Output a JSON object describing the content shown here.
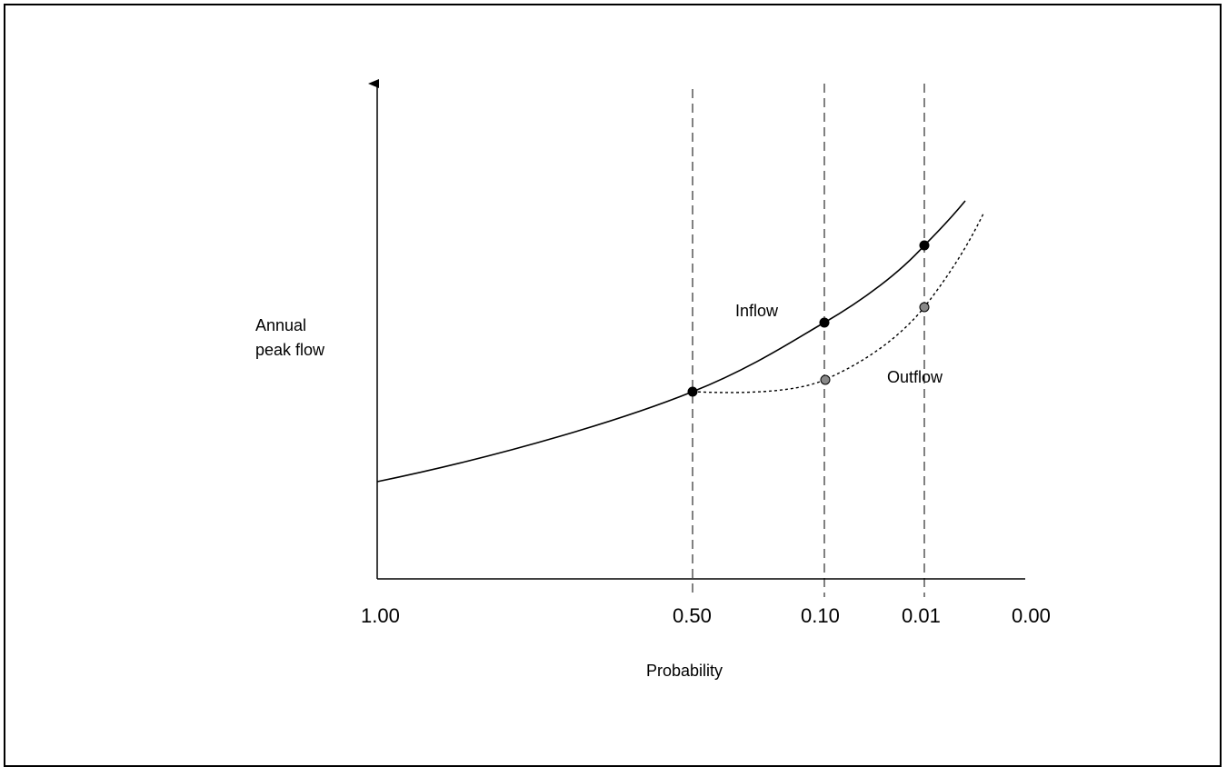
{
  "chart_data": {
    "type": "line",
    "xlabel": "Probability",
    "ylabel": [
      "Annual",
      "peak flow"
    ],
    "x_axis": {
      "reversed": true,
      "tick_labels": [
        "1.00",
        "0.50",
        "0.10",
        "0.01",
        "0.00"
      ]
    },
    "reference_lines": {
      "style": "dashed",
      "at": [
        "0.50",
        "0.10",
        "0.01"
      ]
    },
    "grid": false,
    "colors": {
      "inflow": "#000000",
      "outflow": "#000000",
      "outflow_marker": "#888888"
    },
    "series": [
      {
        "name": "Inflow",
        "style": "solid",
        "points": [
          {
            "x": "1.00",
            "y": 1.0
          },
          {
            "x": "0.50",
            "y": 2.0,
            "marker": true
          },
          {
            "x": "0.10",
            "y": 2.7,
            "marker": true
          },
          {
            "x": "0.01",
            "y": 3.5,
            "marker": true
          }
        ]
      },
      {
        "name": "Outflow",
        "style": "dotted",
        "points": [
          {
            "x": "0.50",
            "y": 2.0
          },
          {
            "x": "0.10",
            "y": 2.1,
            "marker": true
          },
          {
            "x": "0.01",
            "y": 2.9,
            "marker": true
          }
        ]
      }
    ]
  }
}
